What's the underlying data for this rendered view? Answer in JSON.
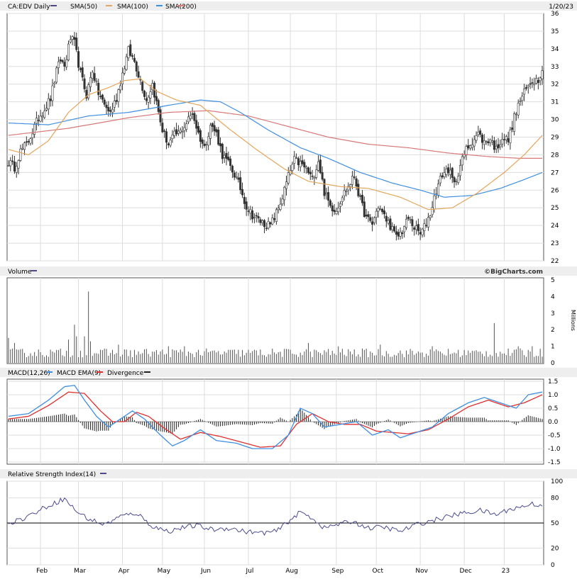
{
  "chart_data": [
    {
      "type": "candlestick",
      "title": "CA:EDV Daily",
      "date": "1/20/23",
      "legend": [
        {
          "label": "CA:EDV Daily",
          "color": "#4b4b8c"
        },
        {
          "label": "SMA(50)",
          "color": "#e3a65c"
        },
        {
          "label": "SMA(100)",
          "color": "#3f8fe0"
        },
        {
          "label": "SMA(200)",
          "color": "#d87878"
        }
      ],
      "ylim": [
        22,
        36
      ],
      "yticks": [
        22,
        23,
        24,
        25,
        26,
        27,
        28,
        29,
        30,
        31,
        32,
        33,
        34,
        35,
        36
      ],
      "x_months": [
        "Feb",
        "Mar",
        "Apr",
        "May",
        "Jun",
        "Jul",
        "Aug",
        "Sep",
        "Oct",
        "Nov",
        "Dec",
        "23"
      ],
      "price_anchors": [
        [
          0,
          27.6
        ],
        [
          3,
          27.3
        ],
        [
          6,
          28.2
        ],
        [
          9,
          28.6
        ],
        [
          12,
          29.3
        ],
        [
          15,
          30.1
        ],
        [
          18,
          30.6
        ],
        [
          21,
          31.2
        ],
        [
          24,
          32.7
        ],
        [
          26,
          33.4
        ],
        [
          28,
          33.0
        ],
        [
          31,
          34.6
        ],
        [
          33,
          34.3
        ],
        [
          36,
          32.6
        ],
        [
          39,
          31.4
        ],
        [
          42,
          32.8
        ],
        [
          45,
          31.5
        ],
        [
          48,
          30.8
        ],
        [
          51,
          30.4
        ],
        [
          54,
          31.2
        ],
        [
          57,
          32.6
        ],
        [
          60,
          33.9
        ],
        [
          63,
          33.3
        ],
        [
          66,
          32.2
        ],
        [
          69,
          31.1
        ],
        [
          72,
          32.0
        ],
        [
          75,
          30.4
        ],
        [
          77,
          29.4
        ],
        [
          80,
          28.6
        ],
        [
          83,
          29.1
        ],
        [
          86,
          29.3
        ],
        [
          89,
          29.8
        ],
        [
          92,
          30.4
        ],
        [
          95,
          29.2
        ],
        [
          98,
          28.4
        ],
        [
          101,
          29.7
        ],
        [
          104,
          29.2
        ],
        [
          107,
          28.0
        ],
        [
          110,
          27.5
        ],
        [
          113,
          26.9
        ],
        [
          116,
          26.1
        ],
        [
          119,
          25.1
        ],
        [
          122,
          24.6
        ],
        [
          125,
          24.3
        ],
        [
          128,
          24.1
        ],
        [
          131,
          24.0
        ],
        [
          134,
          24.7
        ],
        [
          137,
          25.6
        ],
        [
          140,
          26.8
        ],
        [
          143,
          27.7
        ],
        [
          146,
          27.5
        ],
        [
          149,
          27.2
        ],
        [
          152,
          26.6
        ],
        [
          155,
          27.7
        ],
        [
          158,
          25.9
        ],
        [
          161,
          25.1
        ],
        [
          164,
          24.9
        ],
        [
          167,
          25.7
        ],
        [
          170,
          26.2
        ],
        [
          173,
          26.8
        ],
        [
          176,
          25.4
        ],
        [
          179,
          24.4
        ],
        [
          182,
          24.1
        ],
        [
          185,
          25.1
        ],
        [
          188,
          24.5
        ],
        [
          191,
          24.0
        ],
        [
          194,
          23.3
        ],
        [
          197,
          23.7
        ],
        [
          200,
          24.4
        ],
        [
          203,
          23.9
        ],
        [
          206,
          23.5
        ],
        [
          208,
          23.9
        ],
        [
          211,
          24.7
        ],
        [
          214,
          26.0
        ],
        [
          217,
          26.9
        ],
        [
          220,
          27.2
        ],
        [
          223,
          26.3
        ],
        [
          226,
          27.4
        ],
        [
          229,
          28.3
        ],
        [
          232,
          28.8
        ],
        [
          235,
          29.2
        ],
        [
          238,
          28.7
        ],
        [
          241,
          28.9
        ],
        [
          244,
          28.3
        ],
        [
          247,
          29.0
        ],
        [
          250,
          28.8
        ],
        [
          253,
          30.1
        ],
        [
          256,
          31.1
        ],
        [
          259,
          31.7
        ],
        [
          262,
          32.2
        ],
        [
          265,
          32.3
        ],
        [
          267,
          32.9
        ]
      ],
      "sma50": [
        [
          0,
          28.3
        ],
        [
          10,
          28.0
        ],
        [
          20,
          28.8
        ],
        [
          30,
          30.4
        ],
        [
          40,
          31.4
        ],
        [
          50,
          31.8
        ],
        [
          58,
          32.2
        ],
        [
          66,
          32.3
        ],
        [
          74,
          31.6
        ],
        [
          84,
          31.1
        ],
        [
          96,
          30.8
        ],
        [
          110,
          29.5
        ],
        [
          124,
          28.3
        ],
        [
          138,
          27.2
        ],
        [
          150,
          26.5
        ],
        [
          166,
          26.2
        ],
        [
          180,
          26.1
        ],
        [
          196,
          25.6
        ],
        [
          210,
          24.9
        ],
        [
          222,
          25.0
        ],
        [
          234,
          25.8
        ],
        [
          248,
          27.0
        ],
        [
          258,
          28.0
        ],
        [
          267,
          29.1
        ]
      ],
      "sma100": [
        [
          0,
          29.8
        ],
        [
          20,
          29.7
        ],
        [
          40,
          30.2
        ],
        [
          60,
          30.4
        ],
        [
          80,
          30.8
        ],
        [
          96,
          31.1
        ],
        [
          106,
          31.0
        ],
        [
          116,
          30.4
        ],
        [
          130,
          29.4
        ],
        [
          146,
          28.4
        ],
        [
          160,
          27.8
        ],
        [
          176,
          27.0
        ],
        [
          192,
          26.4
        ],
        [
          206,
          26.0
        ],
        [
          218,
          25.6
        ],
        [
          232,
          25.7
        ],
        [
          246,
          26.1
        ],
        [
          258,
          26.6
        ],
        [
          267,
          27.0
        ]
      ],
      "sma200": [
        [
          0,
          29.1
        ],
        [
          30,
          29.5
        ],
        [
          60,
          30.1
        ],
        [
          80,
          30.4
        ],
        [
          100,
          30.5
        ],
        [
          120,
          30.2
        ],
        [
          140,
          29.6
        ],
        [
          160,
          29.0
        ],
        [
          180,
          28.6
        ],
        [
          200,
          28.4
        ],
        [
          220,
          28.1
        ],
        [
          240,
          27.9
        ],
        [
          256,
          27.8
        ],
        [
          267,
          27.8
        ]
      ]
    },
    {
      "type": "bar",
      "title": "Volume",
      "legend": [
        {
          "label": "Volume",
          "color": "#4b4b8c"
        }
      ],
      "ylim": [
        0,
        5
      ],
      "yticks": [
        0,
        1,
        2,
        3,
        4,
        5
      ],
      "yunit": "Millions",
      "source": "©BigCharts.com",
      "base_level": 0.6,
      "spikes": [
        [
          0,
          1.5
        ],
        [
          3,
          1.2
        ],
        [
          30,
          1.4
        ],
        [
          33,
          2.3
        ],
        [
          34,
          1.6
        ],
        [
          38,
          1.6
        ],
        [
          40,
          4.3
        ],
        [
          41,
          1.3
        ],
        [
          55,
          1.1
        ],
        [
          80,
          1.0
        ],
        [
          88,
          1.0
        ],
        [
          150,
          1.2
        ],
        [
          165,
          1.0
        ],
        [
          186,
          1.1
        ],
        [
          212,
          1.0
        ],
        [
          243,
          2.4
        ],
        [
          255,
          1.0
        ],
        [
          262,
          1.0
        ]
      ]
    },
    {
      "type": "line",
      "title": "MACD(12,26)",
      "legend": [
        {
          "label": "MACD(12,26)",
          "color": "#3f8fe0"
        },
        {
          "label": "MACD EMA(9)",
          "color": "#e03030"
        },
        {
          "label": "Divergence",
          "color": "#222222"
        }
      ],
      "ylim": [
        -1.5,
        1.5
      ],
      "yticks": [
        -1.5,
        -1.0,
        -0.5,
        0.0,
        0.5,
        1.0,
        1.5
      ],
      "macd": [
        [
          0,
          0.2
        ],
        [
          10,
          0.3
        ],
        [
          20,
          0.8
        ],
        [
          28,
          1.3
        ],
        [
          33,
          1.35
        ],
        [
          38,
          0.8
        ],
        [
          44,
          0.2
        ],
        [
          50,
          -0.2
        ],
        [
          56,
          0.1
        ],
        [
          62,
          0.4
        ],
        [
          68,
          0.1
        ],
        [
          76,
          -0.5
        ],
        [
          82,
          -0.9
        ],
        [
          88,
          -0.7
        ],
        [
          96,
          -0.3
        ],
        [
          104,
          -0.7
        ],
        [
          114,
          -0.8
        ],
        [
          122,
          -1.0
        ],
        [
          132,
          -1.0
        ],
        [
          140,
          -0.5
        ],
        [
          146,
          0.5
        ],
        [
          152,
          0.3
        ],
        [
          158,
          -0.2
        ],
        [
          166,
          -0.1
        ],
        [
          174,
          0.0
        ],
        [
          182,
          -0.5
        ],
        [
          190,
          -0.3
        ],
        [
          196,
          -0.6
        ],
        [
          204,
          -0.4
        ],
        [
          212,
          -0.2
        ],
        [
          220,
          0.3
        ],
        [
          230,
          0.7
        ],
        [
          238,
          0.9
        ],
        [
          246,
          0.7
        ],
        [
          254,
          0.5
        ],
        [
          260,
          1.0
        ],
        [
          267,
          1.1
        ]
      ],
      "ema": [
        [
          0,
          0.1
        ],
        [
          10,
          0.2
        ],
        [
          20,
          0.6
        ],
        [
          30,
          1.1
        ],
        [
          38,
          1.05
        ],
        [
          46,
          0.4
        ],
        [
          52,
          0.0
        ],
        [
          58,
          0.0
        ],
        [
          64,
          0.35
        ],
        [
          70,
          0.2
        ],
        [
          78,
          -0.25
        ],
        [
          86,
          -0.65
        ],
        [
          96,
          -0.4
        ],
        [
          106,
          -0.55
        ],
        [
          116,
          -0.75
        ],
        [
          126,
          -0.95
        ],
        [
          136,
          -0.9
        ],
        [
          144,
          -0.1
        ],
        [
          152,
          0.3
        ],
        [
          160,
          0.0
        ],
        [
          168,
          -0.1
        ],
        [
          176,
          -0.1
        ],
        [
          184,
          -0.35
        ],
        [
          192,
          -0.4
        ],
        [
          200,
          -0.45
        ],
        [
          210,
          -0.3
        ],
        [
          220,
          0.1
        ],
        [
          230,
          0.55
        ],
        [
          240,
          0.8
        ],
        [
          250,
          0.55
        ],
        [
          258,
          0.7
        ],
        [
          267,
          1.0
        ]
      ]
    },
    {
      "type": "line",
      "title": "Relative Strength Index(14)",
      "legend": [
        {
          "label": "Relative Strength Index(14)",
          "color": "#4b4b8c"
        }
      ],
      "ylim": [
        0,
        100
      ],
      "yticks": [
        0,
        20,
        50,
        80,
        100
      ],
      "reference_line": 50,
      "rsi": [
        [
          0,
          50
        ],
        [
          8,
          56
        ],
        [
          16,
          66
        ],
        [
          22,
          73
        ],
        [
          28,
          79
        ],
        [
          34,
          64
        ],
        [
          40,
          55
        ],
        [
          48,
          48
        ],
        [
          56,
          58
        ],
        [
          64,
          62
        ],
        [
          72,
          46
        ],
        [
          80,
          40
        ],
        [
          86,
          44
        ],
        [
          94,
          47
        ],
        [
          102,
          42
        ],
        [
          110,
          44
        ],
        [
          118,
          40
        ],
        [
          126,
          38
        ],
        [
          134,
          40
        ],
        [
          140,
          52
        ],
        [
          146,
          63
        ],
        [
          152,
          56
        ],
        [
          158,
          44
        ],
        [
          164,
          48
        ],
        [
          172,
          52
        ],
        [
          180,
          44
        ],
        [
          188,
          45
        ],
        [
          196,
          40
        ],
        [
          204,
          48
        ],
        [
          212,
          53
        ],
        [
          220,
          58
        ],
        [
          228,
          62
        ],
        [
          236,
          65
        ],
        [
          244,
          60
        ],
        [
          250,
          66
        ],
        [
          256,
          69
        ],
        [
          262,
          73
        ],
        [
          267,
          71
        ]
      ]
    }
  ]
}
